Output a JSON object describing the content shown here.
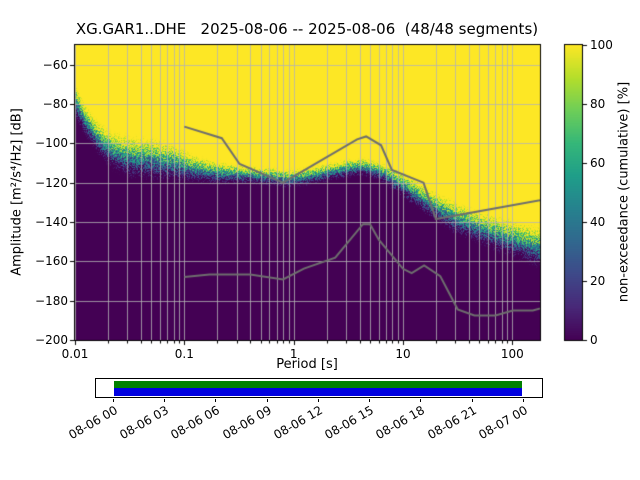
{
  "figure": {
    "background": "#ffffff"
  },
  "chart_data": {
    "type": "heatmap",
    "title": "XG.GAR1..DHE   2025-08-06 -- 2025-08-06  (48/48 segments)",
    "xlabel": "Period [s]",
    "ylabel": "Amplitude [m²/s⁴/Hz] [dB]",
    "colorbar_label": "non-exceedance (cumulative) [%]",
    "x_scale": "log",
    "xlim": [
      0.01,
      179
    ],
    "ylim": [
      -200,
      -50
    ],
    "grid": true,
    "xtick_values": [
      0.01,
      0.1,
      1,
      10,
      100
    ],
    "xtick_labels": [
      "0.01",
      "0.1",
      "1",
      "10",
      "100"
    ],
    "ytick_values": [
      -60,
      -80,
      -100,
      -120,
      -140,
      -160,
      -180,
      -200
    ],
    "ytick_labels": [
      "−60",
      "−80",
      "−100",
      "−120",
      "−140",
      "−160",
      "−180",
      "−200"
    ],
    "colorbar_tick_values": [
      0,
      20,
      40,
      60,
      80,
      100
    ],
    "colorbar_tick_labels": [
      "0",
      "20",
      "40",
      "60",
      "80",
      "100"
    ],
    "colormap_viridis": [
      "#440154",
      "#482878",
      "#3e4989",
      "#31688e",
      "#26828e",
      "#1f9e89",
      "#35b779",
      "#6ece58",
      "#b5de2b",
      "#fde725"
    ],
    "grid_color": "#b4b4b4",
    "noise_model_color": "#6e6e6e",
    "cumulative_distribution": {
      "periods": [
        0.01,
        0.012,
        0.016,
        0.022,
        0.032,
        0.05,
        0.08,
        0.12,
        0.2,
        0.35,
        0.6,
        0.9,
        1.3,
        2,
        3,
        4.2,
        6,
        8,
        12,
        18,
        30,
        50,
        80,
        120,
        179
      ],
      "median_db": [
        -78,
        -87,
        -97,
        -104,
        -107,
        -108,
        -110,
        -113,
        -115,
        -116,
        -117,
        -118,
        -117,
        -115,
        -113,
        -112,
        -114,
        -118,
        -124,
        -131,
        -138,
        -143,
        -147,
        -150,
        -153
      ],
      "spread_db": [
        7,
        7,
        7,
        8,
        9,
        9,
        8,
        6,
        5,
        4,
        4,
        4,
        4,
        4,
        4,
        4,
        4,
        5,
        6,
        6,
        7,
        7,
        8,
        8,
        9
      ]
    },
    "noise_models": {
      "nhnm": {
        "periods": [
          0.1,
          0.22,
          0.32,
          0.8,
          3.8,
          4.6,
          6.3,
          7.9,
          15.4,
          20.0,
          354.8
        ],
        "db": [
          -91.5,
          -97.4,
          -110.5,
          -120.0,
          -98.0,
          -96.5,
          -101.0,
          -113.5,
          -120.0,
          -138.5,
          -126.0
        ]
      },
      "nlnm": {
        "periods": [
          0.1,
          0.17,
          0.4,
          0.8,
          1.24,
          2.4,
          4.3,
          5.0,
          6.0,
          10.0,
          12.0,
          15.6,
          21.9,
          31.6,
          45.0,
          70.0,
          101.0,
          154.0,
          328.0
        ],
        "db": [
          -168.0,
          -166.7,
          -166.7,
          -169.2,
          -163.7,
          -158.1,
          -141.1,
          -141.1,
          -149.0,
          -163.8,
          -166.0,
          -162.1,
          -167.5,
          -184.4,
          -187.5,
          -187.5,
          -185.0,
          -185.0,
          -179.8
        ]
      }
    }
  },
  "coverage": {
    "tick_labels": [
      "08-06 00",
      "08-06 03",
      "08-06 06",
      "08-06 09",
      "08-06 12",
      "08-06 15",
      "08-06 18",
      "08-06 21",
      "08-07 00"
    ],
    "green_color": "#008000",
    "blue_color": "#0000e0",
    "span": [
      0.04,
      0.955
    ]
  }
}
